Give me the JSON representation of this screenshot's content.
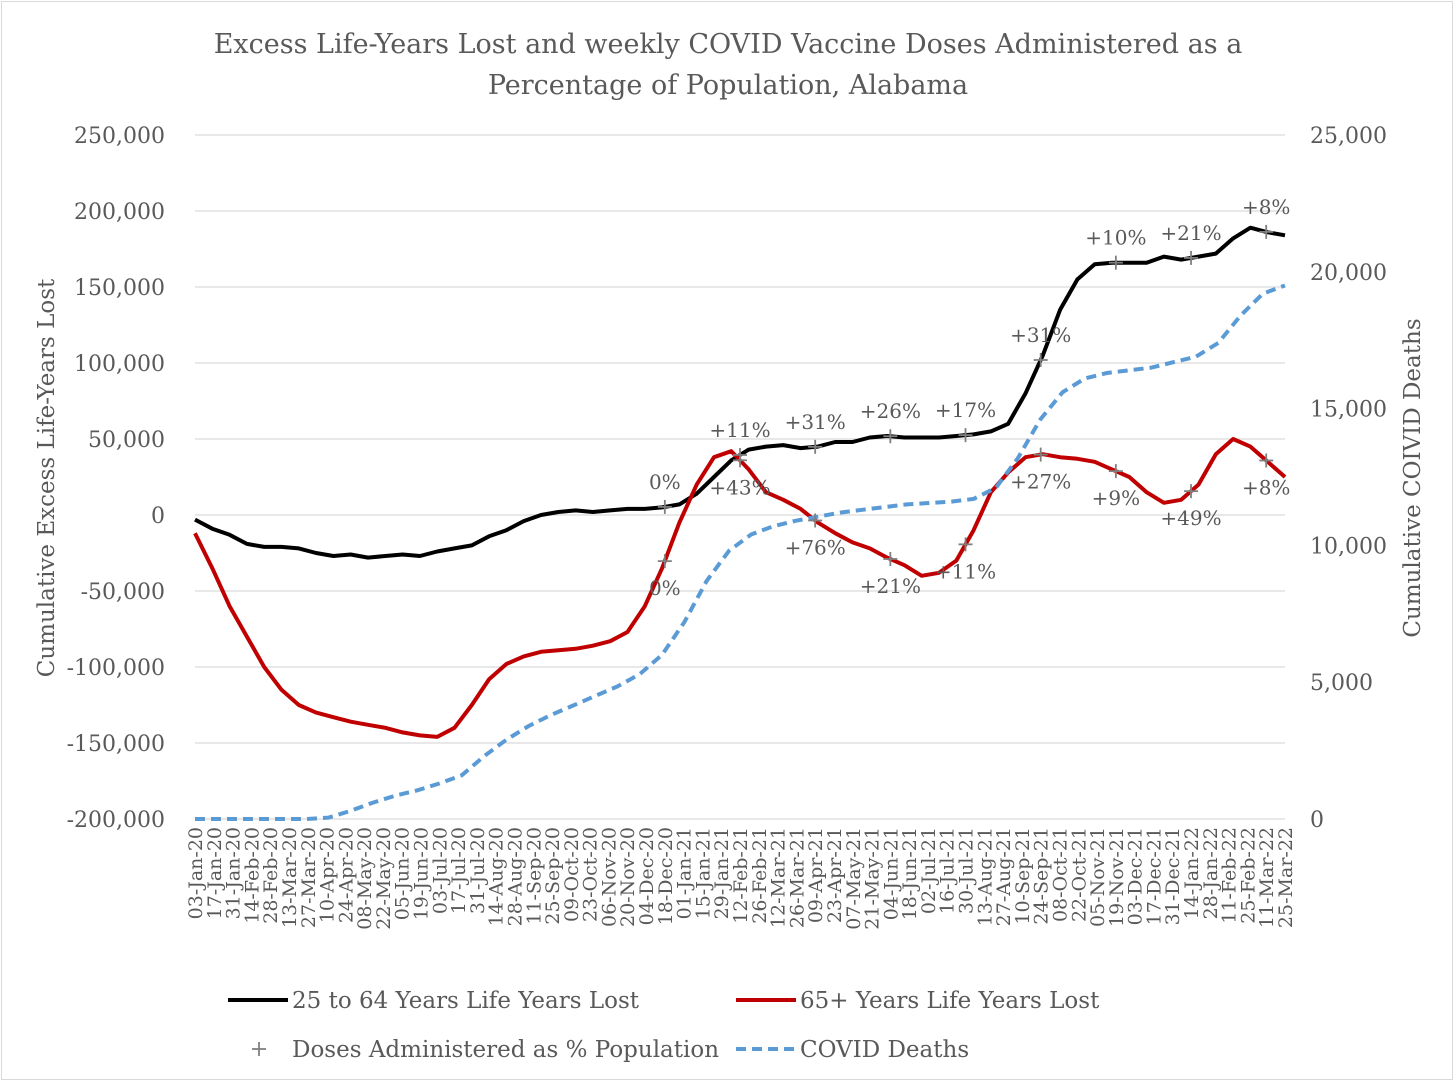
{
  "chart_data": {
    "type": "line",
    "title": "Excess Life-Years Lost and weekly COVID Vaccine Doses Administered as a Percentage of Population, Alabama",
    "title_lines": [
      "Excess Life-Years Lost and weekly COVID Vaccine Doses Administered as a",
      "Percentage of Population, Alabama"
    ],
    "ylabel": "Cumulative Excess Life-Years Lost",
    "y2label": "Cumulative COIVID Deaths",
    "ylim": [
      -200000,
      250000
    ],
    "y2lim": [
      0,
      25000
    ],
    "y_ticks": [
      "250,000",
      "200,000",
      "150,000",
      "100,000",
      "50,000",
      "0",
      "-50,000",
      "-100,000",
      "-150,000",
      "-200,000"
    ],
    "y2_ticks": [
      "25,000",
      "20,000",
      "15,000",
      "10,000",
      "5,000",
      "0"
    ],
    "y_tick_values": [
      250000,
      200000,
      150000,
      100000,
      50000,
      0,
      -50000,
      -100000,
      -150000,
      -200000
    ],
    "y2_tick_values": [
      25000,
      20000,
      15000,
      10000,
      5000,
      0
    ],
    "grid": true,
    "legend_position": "bottom",
    "x_tick_labels": [
      "03-Jan-20",
      "17-Jan-20",
      "31-Jan-20",
      "14-Feb-20",
      "28-Feb-20",
      "13-Mar-20",
      "27-Mar-20",
      "10-Apr-20",
      "24-Apr-20",
      "08-May-20",
      "22-May-20",
      "05-Jun-20",
      "19-Jun-20",
      "03-Jul-20",
      "17-Jul-20",
      "31-Jul-20",
      "14-Aug-20",
      "28-Aug-20",
      "11-Sep-20",
      "25-Sep-20",
      "09-Oct-20",
      "23-Oct-20",
      "06-Nov-20",
      "20-Nov-20",
      "04-Dec-20",
      "18-Dec-20",
      "01-Jan-21",
      "15-Jan-21",
      "29-Jan-21",
      "12-Feb-21",
      "26-Feb-21",
      "12-Mar-21",
      "26-Mar-21",
      "09-Apr-21",
      "23-Apr-21",
      "07-May-21",
      "21-May-21",
      "04-Jun-21",
      "18-Jun-21",
      "02-Jul-21",
      "16-Jul-21",
      "30-Jul-21",
      "13-Aug-21",
      "27-Aug-21",
      "10-Sep-21",
      "24-Sep-21",
      "08-Oct-21",
      "22-Oct-21",
      "05-Nov-21",
      "19-Nov-21",
      "03-Dec-21",
      "17-Dec-21",
      "31-Dec-21",
      "14-Jan-22",
      "28-Jan-22",
      "11-Feb-22",
      "25-Feb-22",
      "11-Mar-22",
      "25-Mar-22"
    ],
    "series": [
      {
        "name": "25 to 64 Years Life Years Lost",
        "axis": "left",
        "color": "#000000",
        "style": "solid",
        "values": [
          -3000,
          -9000,
          -13000,
          -19000,
          -21000,
          -21000,
          -22000,
          -25000,
          -27000,
          -26000,
          -28000,
          -27000,
          -26000,
          -27000,
          -24000,
          -22000,
          -20000,
          -14000,
          -10000,
          -4000,
          0,
          2000,
          3000,
          2000,
          3000,
          4000,
          4000,
          5000,
          7000,
          14000,
          25000,
          36000,
          43000,
          45000,
          46000,
          44000,
          45000,
          48000,
          48000,
          51000,
          52000,
          51000,
          51000,
          51000,
          52000,
          53000,
          55000,
          60000,
          80000,
          105000,
          135000,
          155000,
          165000,
          166000,
          166000,
          166000,
          170000,
          168000,
          170000,
          172000,
          182000,
          189000,
          186000,
          184000
        ]
      },
      {
        "name": "65+ Years Life Years Lost",
        "axis": "left",
        "color": "#c00000",
        "style": "solid",
        "values": [
          -12000,
          -35000,
          -60000,
          -80000,
          -100000,
          -115000,
          -125000,
          -130000,
          -133000,
          -136000,
          -138000,
          -140000,
          -143000,
          -145000,
          -146000,
          -140000,
          -125000,
          -108000,
          -98000,
          -93000,
          -90000,
          -89000,
          -88000,
          -86000,
          -83000,
          -77000,
          -60000,
          -35000,
          -5000,
          20000,
          38000,
          42000,
          30000,
          15000,
          10000,
          4000,
          -5000,
          -12000,
          -18000,
          -22000,
          -28000,
          -33000,
          -40000,
          -38000,
          -30000,
          -10000,
          15000,
          28000,
          38000,
          40000,
          38000,
          37000,
          35000,
          30000,
          25000,
          15000,
          8000,
          10000,
          20000,
          40000,
          50000,
          45000,
          35000,
          25000
        ]
      },
      {
        "name": "COVID Deaths",
        "axis": "right",
        "color": "#5b9bd5",
        "style": "dashed",
        "values": [
          0,
          0,
          0,
          0,
          0,
          0,
          50,
          300,
          600,
          850,
          1050,
          1300,
          1600,
          2300,
          2900,
          3400,
          3800,
          4150,
          4500,
          4850,
          5300,
          6000,
          7200,
          8700,
          9800,
          10400,
          10700,
          10900,
          11050,
          11200,
          11300,
          11400,
          11500,
          11550,
          11600,
          11700,
          12100,
          13200,
          14600,
          15600,
          16100,
          16300,
          16400,
          16500,
          16700,
          16900,
          17400,
          18400,
          19200,
          19500
        ]
      },
      {
        "name": "Doses Administered as % Population",
        "type": "marker",
        "marker": "+",
        "color": "#7f7f7f",
        "points": [
          {
            "x": "18-Dec-20",
            "series": "25 to 64 Years Life Years Lost",
            "label": "0%"
          },
          {
            "x": "18-Dec-20",
            "series": "65+ Years Life Years Lost",
            "label": "0%"
          },
          {
            "x": "12-Feb-21",
            "series": "25 to 64 Years Life Years Lost",
            "label": "+11%"
          },
          {
            "x": "12-Feb-21",
            "series": "65+ Years Life Years Lost",
            "label": "+43%"
          },
          {
            "x": "09-Apr-21",
            "series": "25 to 64 Years Life Years Lost",
            "label": "+31%"
          },
          {
            "x": "09-Apr-21",
            "series": "65+ Years Life Years Lost",
            "label": "+76%"
          },
          {
            "x": "04-Jun-21",
            "series": "25 to 64 Years Life Years Lost",
            "label": "+26%"
          },
          {
            "x": "04-Jun-21",
            "series": "65+ Years Life Years Lost",
            "label": "+21%"
          },
          {
            "x": "30-Jul-21",
            "series": "25 to 64 Years Life Years Lost",
            "label": "+17%"
          },
          {
            "x": "30-Jul-21",
            "series": "65+ Years Life Years Lost",
            "label": "+11%"
          },
          {
            "x": "24-Sep-21",
            "series": "25 to 64 Years Life Years Lost",
            "label": "+31%"
          },
          {
            "x": "24-Sep-21",
            "series": "65+ Years Life Years Lost",
            "label": "+27%"
          },
          {
            "x": "19-Nov-21",
            "series": "25 to 64 Years Life Years Lost",
            "label": "+10%"
          },
          {
            "x": "19-Nov-21",
            "series": "65+ Years Life Years Lost",
            "label": "+9%"
          },
          {
            "x": "14-Jan-22",
            "series": "25 to 64 Years Life Years Lost",
            "label": "+21%"
          },
          {
            "x": "14-Jan-22",
            "series": "65+ Years Life Years Lost",
            "label": "+49%"
          },
          {
            "x": "11-Mar-22",
            "series": "25 to 64 Years Life Years Lost",
            "label": "+8%"
          },
          {
            "x": "11-Mar-22",
            "series": "65+ Years Life Years Lost",
            "label": "+8%"
          }
        ]
      }
    ],
    "legend": [
      {
        "label": "25 to 64 Years Life Years Lost",
        "symbol": "solid",
        "color": "#000000"
      },
      {
        "label": "65+ Years Life Years Lost",
        "symbol": "solid",
        "color": "#c00000"
      },
      {
        "label": "Doses Administered as % Population",
        "symbol": "plus",
        "color": "#7f7f7f"
      },
      {
        "label": "COVID Deaths",
        "symbol": "dashed",
        "color": "#5b9bd5"
      }
    ]
  }
}
